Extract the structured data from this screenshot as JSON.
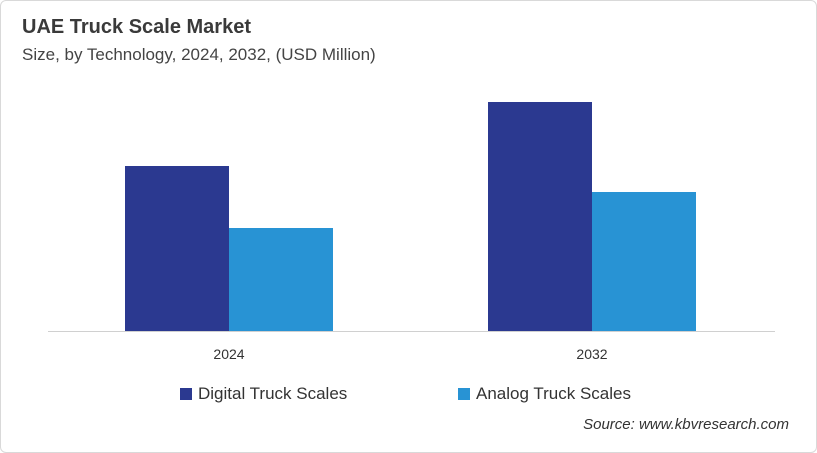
{
  "chart_data": {
    "type": "bar",
    "title": "UAE Truck Scale Market",
    "subtitle": "Size, by Technology, 2024, 2032, (USD Million)",
    "categories": [
      "2024",
      "2032"
    ],
    "series": [
      {
        "name": "Digital Truck Scales",
        "color": "#2b3990",
        "values": [
          16.5,
          22.9
        ]
      },
      {
        "name": "Analog Truck Scales",
        "color": "#2893d4",
        "values": [
          10.3,
          13.9
        ]
      }
    ],
    "ylim": [
      0,
      25
    ],
    "grid": false,
    "legend": "bottom",
    "value_note": ""
  },
  "source": "Source: www.kbvresearch.com"
}
